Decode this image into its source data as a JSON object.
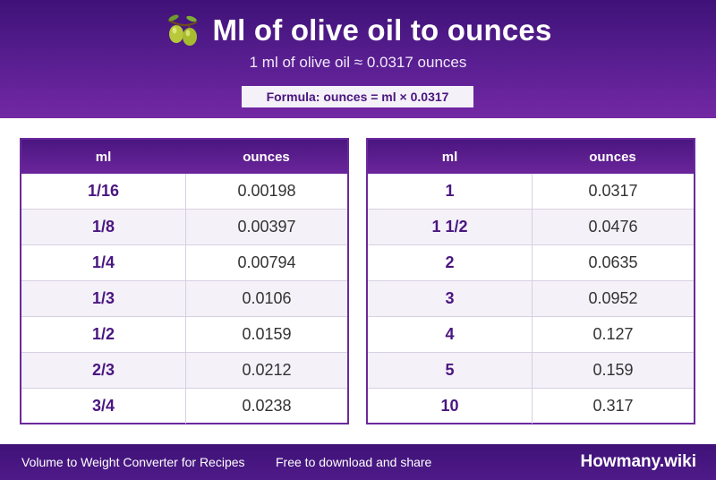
{
  "header": {
    "title": "Ml of olive oil to ounces",
    "icon": "olive-icon",
    "subtitle": "1 ml of olive oil ≈ 0.0317 ounces",
    "formula": "Formula: ounces = ml × 0.0317"
  },
  "tables": [
    {
      "columns": [
        "ml",
        "ounces"
      ],
      "rows": [
        [
          "1/16",
          "0.00198"
        ],
        [
          "1/8",
          "0.00397"
        ],
        [
          "1/4",
          "0.00794"
        ],
        [
          "1/3",
          "0.0106"
        ],
        [
          "1/2",
          "0.0159"
        ],
        [
          "2/3",
          "0.0212"
        ],
        [
          "3/4",
          "0.0238"
        ]
      ]
    },
    {
      "columns": [
        "ml",
        "ounces"
      ],
      "rows": [
        [
          "1",
          "0.0317"
        ],
        [
          "1 1/2",
          "0.0476"
        ],
        [
          "2",
          "0.0635"
        ],
        [
          "3",
          "0.0952"
        ],
        [
          "4",
          "0.127"
        ],
        [
          "5",
          "0.159"
        ],
        [
          "10",
          "0.317"
        ]
      ]
    }
  ],
  "footer": {
    "left": "Volume to Weight Converter for Recipes",
    "middle": "Free to download and share",
    "brand": "Howmany.wiki"
  },
  "colors": {
    "brand_purple": "#4a1680",
    "header_gradient_end": "#7428a4",
    "row_alt": "#f4f1f9"
  }
}
